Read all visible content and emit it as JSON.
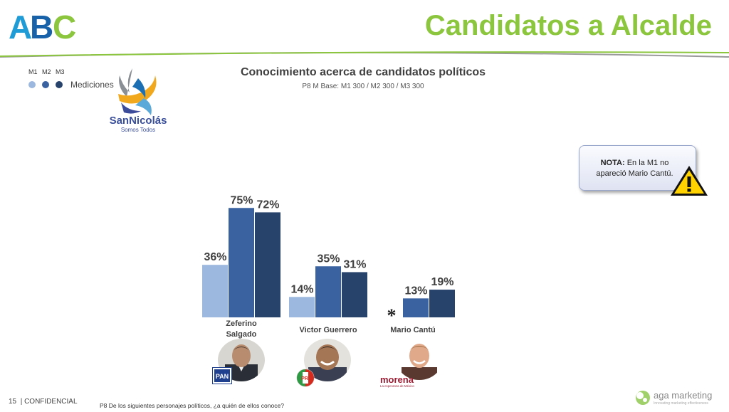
{
  "header": {
    "brand_logo": "ABC",
    "title": "Candidatos a Alcalde"
  },
  "legend": {
    "labels": [
      "M1",
      "M2",
      "M3"
    ],
    "caption": "Mediciones"
  },
  "city_logo": {
    "name": "SanNicolás",
    "tagline": "Somos Todos"
  },
  "note": {
    "bold": "NOTA:",
    "text": "En la M1 no apareció Mario Cantú."
  },
  "footer": {
    "page": "15",
    "confidential": "| CONFIDENCIAL",
    "question": "P8 De los siguientes personajes políticos, ¿a quién de ellos conoce?"
  },
  "footer_brand": {
    "name": "aga marketing",
    "tagline": "Innovating marketing effectiveness"
  },
  "party_logos": [
    "PAN",
    "PRI",
    "morena"
  ],
  "morena_tagline": "La esperanza de México",
  "colors": {
    "M1": "#9db8de",
    "M2": "#3a62a0",
    "M3": "#27426b",
    "accent": "#8cc63f"
  },
  "chart_data": {
    "type": "bar",
    "title": "Conocimiento acerca de candidatos políticos",
    "subtitle": "P8 M Base: M1 300 / M2 300 / M3 300",
    "categories": [
      "Zeferino Salgado",
      "Victor Guerrero",
      "Mario Cantú"
    ],
    "series": [
      {
        "name": "M1",
        "values": [
          36,
          14,
          null
        ]
      },
      {
        "name": "M2",
        "values": [
          75,
          35,
          13
        ]
      },
      {
        "name": "M3",
        "values": [
          72,
          31,
          19
        ]
      }
    ],
    "value_suffix": "%",
    "annotation": "*",
    "ylim": [
      0,
      80
    ]
  }
}
